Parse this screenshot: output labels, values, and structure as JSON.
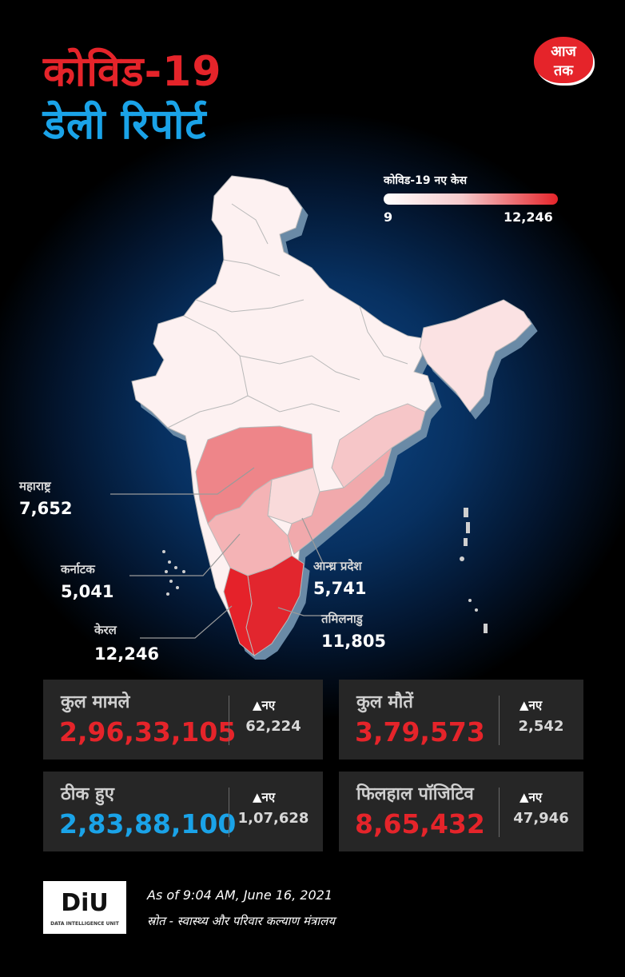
{
  "header": {
    "title_line1": "कोविड-19",
    "title_line2": "डेली रिपोर्ट",
    "logo_top": "आज",
    "logo_bottom": "तक"
  },
  "legend": {
    "title": "कोविड-19 नए केस",
    "min": "9",
    "max": "12,246",
    "color_low": "#ffffff",
    "color_high": "#e5242a"
  },
  "map_labels": [
    {
      "name": "महाराष्ट्र",
      "value": "7,652"
    },
    {
      "name": "कर्नाटक",
      "value": "5,041"
    },
    {
      "name": "केरल",
      "value": "12,246"
    },
    {
      "name": "आन्ध्र प्रदेश",
      "value": "5,741"
    },
    {
      "name": "तमिलनाडु",
      "value": "11,805"
    }
  ],
  "stats": [
    {
      "label": "कुल मामले",
      "value": "2,96,33,105",
      "new_label": "▲नए",
      "new_value": "62,224",
      "color": "#e5242a"
    },
    {
      "label": "कुल मौतें",
      "value": "3,79,573",
      "new_label": "▲नए",
      "new_value": "2,542",
      "color": "#e5242a"
    },
    {
      "label": "ठीक हुए",
      "value": "2,83,88,100",
      "new_label": "▲नए",
      "new_value": "1,07,628",
      "color": "#1aa3e8"
    },
    {
      "label": "फिलहाल पॉजिटिव",
      "value": "8,65,432",
      "new_label": "▲नए",
      "new_value": "47,946",
      "color": "#e5242a"
    }
  ],
  "footer": {
    "diu_logo": "DiU",
    "diu_sub": "DATA INTELLIGENCE UNIT",
    "as_of": "As of 9:04 AM, June 16, 2021",
    "source": "स्रोत - स्वास्थ्य और परिवार कल्याण मंत्रालय"
  }
}
